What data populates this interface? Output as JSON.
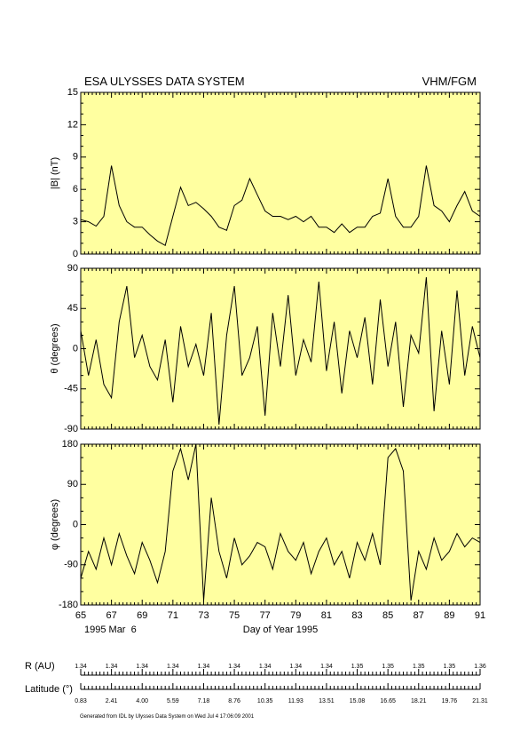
{
  "header": {
    "title": "ESA ULYSSES DATA SYSTEM",
    "instrument": "VHM/FGM"
  },
  "chart_data": [
    {
      "type": "line",
      "ylabel": "|B| (nT)",
      "background": "#ffffa0",
      "color": "#000000",
      "xlim": [
        65,
        91
      ],
      "xticks": [
        65,
        67,
        69,
        71,
        73,
        75,
        77,
        79,
        81,
        83,
        85,
        87,
        89,
        91
      ],
      "ylim": [
        0,
        15
      ],
      "yticks": [
        0,
        3,
        6,
        9,
        12,
        15
      ],
      "x": [
        65,
        65.5,
        66,
        66.5,
        67,
        67.5,
        68,
        68.5,
        69,
        69.5,
        70,
        70.5,
        71,
        71.5,
        72,
        72.5,
        73,
        73.5,
        74,
        74.5,
        75,
        75.5,
        76,
        76.5,
        77,
        77.5,
        78,
        78.5,
        79,
        79.5,
        80,
        80.5,
        81,
        81.5,
        82,
        82.5,
        83,
        83.5,
        84,
        84.5,
        85,
        85.5,
        86,
        86.5,
        87,
        87.5,
        88,
        88.5,
        89,
        89.5,
        90,
        90.5,
        91
      ],
      "values": [
        3.2,
        3.0,
        2.6,
        3.5,
        8.2,
        4.5,
        3.0,
        2.5,
        2.5,
        1.8,
        1.2,
        0.8,
        3.5,
        6.2,
        4.5,
        4.8,
        4.2,
        3.5,
        2.5,
        2.2,
        4.5,
        5.0,
        7.0,
        5.5,
        4.0,
        3.5,
        3.5,
        3.2,
        3.5,
        3.0,
        3.5,
        2.5,
        2.5,
        2.0,
        2.8,
        2.0,
        2.5,
        2.5,
        3.5,
        3.8,
        7.0,
        3.5,
        2.5,
        2.5,
        3.5,
        8.2,
        4.5,
        4.0,
        3.0,
        4.5,
        5.8,
        4.0,
        3.5
      ]
    },
    {
      "type": "line",
      "ylabel": "θ (degrees)",
      "background": "#ffffa0",
      "color": "#000000",
      "xlim": [
        65,
        91
      ],
      "xticks": [
        65,
        67,
        69,
        71,
        73,
        75,
        77,
        79,
        81,
        83,
        85,
        87,
        89,
        91
      ],
      "ylim": [
        -90,
        90
      ],
      "yticks": [
        -90,
        -45,
        0,
        45,
        90
      ],
      "x": [
        65,
        65.5,
        66,
        66.5,
        67,
        67.5,
        68,
        68.5,
        69,
        69.5,
        70,
        70.5,
        71,
        71.5,
        72,
        72.5,
        73,
        73.5,
        74,
        74.5,
        75,
        75.5,
        76,
        76.5,
        77,
        77.5,
        78,
        78.5,
        79,
        79.5,
        80,
        80.5,
        81,
        81.5,
        82,
        82.5,
        83,
        83.5,
        84,
        84.5,
        85,
        85.5,
        86,
        86.5,
        87,
        87.5,
        88,
        88.5,
        89,
        89.5,
        90,
        90.5,
        91
      ],
      "values": [
        20,
        -30,
        10,
        -40,
        -55,
        30,
        70,
        -10,
        15,
        -20,
        -35,
        10,
        -60,
        25,
        -20,
        5,
        -30,
        40,
        -85,
        15,
        70,
        -30,
        -10,
        25,
        -75,
        40,
        -20,
        60,
        -30,
        10,
        -15,
        75,
        -25,
        30,
        -50,
        20,
        -10,
        35,
        -40,
        55,
        -20,
        30,
        -65,
        15,
        -5,
        80,
        -70,
        20,
        -40,
        65,
        -30,
        25,
        -10
      ]
    },
    {
      "type": "line",
      "ylabel": "φ (degrees)",
      "background": "#ffffa0",
      "color": "#000000",
      "xlim": [
        65,
        91
      ],
      "xticks": [
        65,
        67,
        69,
        71,
        73,
        75,
        77,
        79,
        81,
        83,
        85,
        87,
        89,
        91
      ],
      "ylim": [
        -180,
        180
      ],
      "yticks": [
        -180,
        -90,
        0,
        90,
        180
      ],
      "xlabel": "Day of Year 1995",
      "start_date": "1995 Mar  6",
      "x": [
        65,
        65.5,
        66,
        66.5,
        67,
        67.5,
        68,
        68.5,
        69,
        69.5,
        70,
        70.5,
        71,
        71.5,
        72,
        72.5,
        73,
        73.5,
        74,
        74.5,
        75,
        75.5,
        76,
        76.5,
        77,
        77.5,
        78,
        78.5,
        79,
        79.5,
        80,
        80.5,
        81,
        81.5,
        82,
        82.5,
        83,
        83.5,
        84,
        84.5,
        85,
        85.5,
        86,
        86.5,
        87,
        87.5,
        88,
        88.5,
        89,
        89.5,
        90,
        90.5,
        91
      ],
      "values": [
        -120,
        -60,
        -100,
        -30,
        -90,
        -20,
        -70,
        -110,
        -40,
        -80,
        -130,
        -60,
        120,
        170,
        100,
        180,
        -170,
        60,
        -60,
        -120,
        -30,
        -90,
        -70,
        -40,
        -50,
        -100,
        -20,
        -60,
        -80,
        -40,
        -110,
        -60,
        -30,
        -90,
        -60,
        -120,
        -40,
        -80,
        -20,
        -90,
        150,
        170,
        120,
        -170,
        -60,
        -100,
        -30,
        -80,
        -60,
        -20,
        -50,
        -30,
        -40
      ]
    }
  ],
  "ephemeris": [
    {
      "label": "R (AU)",
      "values": [
        "1.34",
        "1.34",
        "1.34",
        "1.34",
        "1.34",
        "1.34",
        "1.34",
        "1.34",
        "1.34",
        "1.35",
        "1.35",
        "1.35",
        "1.35",
        "1.36"
      ]
    },
    {
      "label": "Latitude (°)",
      "values": [
        "0.83",
        "2.41",
        "4.00",
        "5.59",
        "7.18",
        "8.76",
        "10.35",
        "11.93",
        "13.51",
        "15.08",
        "16.65",
        "18.21",
        "19.76",
        "21.31"
      ]
    }
  ],
  "footer": "Generated from IDL by Ulysses Data System on Wed Jul  4 17:06:09 2001"
}
